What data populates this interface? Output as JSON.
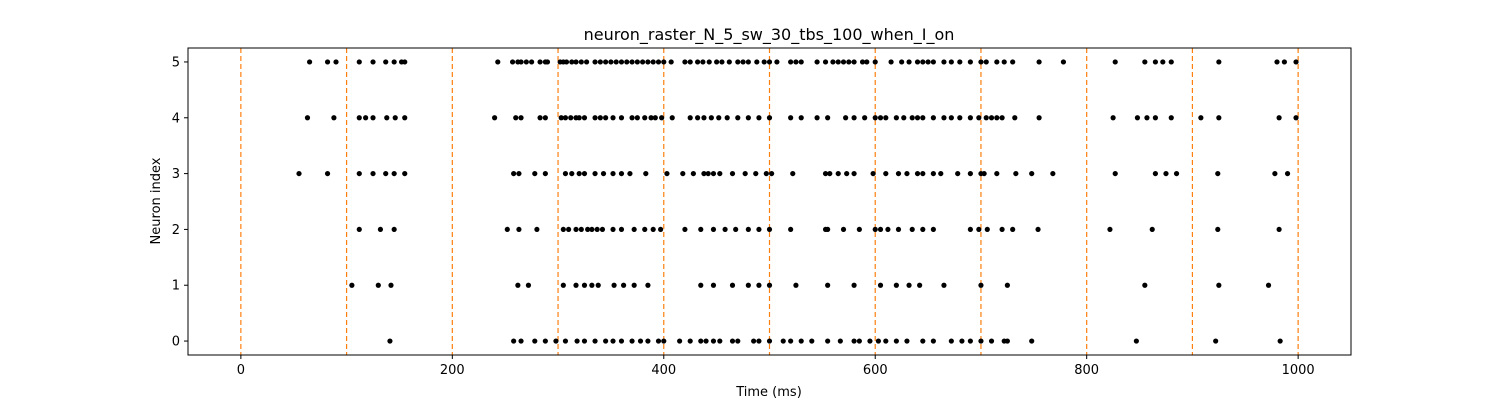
{
  "chart_data": {
    "type": "scatter",
    "title": "neuron_raster_N_5_sw_30_tbs_100_when_I_on",
    "xlabel": "Time (ms)",
    "ylabel": "Neuron index",
    "xlim": [
      -50,
      1050
    ],
    "ylim": [
      -0.25,
      5.25
    ],
    "xticks": [
      0,
      200,
      400,
      600,
      800,
      1000
    ],
    "yticks": [
      0,
      1,
      2,
      3,
      4,
      5
    ],
    "grid": false,
    "vlines": [
      0,
      100,
      200,
      300,
      400,
      500,
      600,
      700,
      800,
      900,
      1000
    ],
    "colors": {
      "marker": "#000000",
      "vline": "#ff7f0e",
      "axes": "#000000"
    },
    "series": [
      {
        "neuron": 5,
        "spikes": [
          65,
          82,
          90,
          112,
          125,
          137,
          145,
          152,
          155,
          243,
          257,
          262,
          265,
          270,
          275,
          283,
          288,
          290,
          302,
          305,
          308,
          313,
          317,
          322,
          327,
          335,
          340,
          345,
          350,
          355,
          360,
          365,
          370,
          375,
          380,
          385,
          390,
          395,
          400,
          407,
          420,
          425,
          432,
          437,
          443,
          450,
          455,
          462,
          470,
          475,
          480,
          488,
          495,
          500,
          507,
          520,
          525,
          530,
          545,
          553,
          560,
          565,
          570,
          575,
          580,
          588,
          592,
          600,
          615,
          625,
          632,
          640,
          645,
          650,
          655,
          665,
          672,
          680,
          690,
          700,
          705,
          715,
          722,
          730,
          755,
          778,
          827,
          855,
          865,
          872,
          880,
          925,
          980,
          987,
          998
        ]
      },
      {
        "neuron": 4,
        "spikes": [
          63,
          88,
          112,
          118,
          125,
          138,
          146,
          155,
          240,
          260,
          265,
          283,
          288,
          303,
          307,
          312,
          317,
          320,
          325,
          335,
          340,
          345,
          352,
          360,
          370,
          375,
          382,
          388,
          392,
          398,
          408,
          425,
          432,
          438,
          445,
          452,
          460,
          470,
          480,
          490,
          500,
          520,
          530,
          545,
          555,
          572,
          580,
          590,
          600,
          605,
          610,
          620,
          627,
          635,
          640,
          645,
          655,
          665,
          672,
          680,
          690,
          698,
          705,
          710,
          715,
          720,
          732,
          755,
          825,
          848,
          857,
          865,
          880,
          908,
          925,
          982,
          998
        ]
      },
      {
        "neuron": 3,
        "spikes": [
          55,
          82,
          112,
          125,
          137,
          145,
          155,
          258,
          263,
          278,
          288,
          307,
          313,
          320,
          325,
          335,
          343,
          352,
          360,
          368,
          383,
          403,
          418,
          428,
          438,
          442,
          447,
          453,
          465,
          477,
          487,
          497,
          502,
          522,
          553,
          557,
          565,
          573,
          580,
          598,
          610,
          622,
          630,
          640,
          645,
          655,
          662,
          678,
          690,
          700,
          703,
          715,
          733,
          748,
          768,
          827,
          865,
          875,
          885,
          924,
          978,
          990
        ]
      },
      {
        "neuron": 2,
        "spikes": [
          112,
          132,
          145,
          252,
          263,
          280,
          305,
          310,
          317,
          322,
          328,
          332,
          337,
          342,
          352,
          360,
          372,
          382,
          390,
          397,
          420,
          435,
          447,
          458,
          468,
          480,
          490,
          500,
          520,
          553,
          555,
          570,
          585,
          600,
          605,
          612,
          622,
          635,
          645,
          655,
          690,
          698,
          706,
          720,
          730,
          754,
          822,
          862,
          924,
          982
        ]
      },
      {
        "neuron": 1,
        "spikes": [
          105,
          130,
          142,
          262,
          272,
          305,
          317,
          325,
          332,
          338,
          353,
          362,
          372,
          385,
          435,
          447,
          465,
          480,
          490,
          500,
          525,
          555,
          580,
          605,
          620,
          632,
          642,
          665,
          700,
          725,
          855,
          925,
          972
        ]
      },
      {
        "neuron": 0,
        "spikes": [
          141,
          258,
          265,
          278,
          288,
          298,
          307,
          318,
          325,
          335,
          345,
          352,
          360,
          370,
          378,
          385,
          395,
          400,
          415,
          425,
          435,
          440,
          447,
          453,
          465,
          470,
          485,
          490,
          500,
          513,
          520,
          530,
          540,
          555,
          567,
          580,
          585,
          595,
          603,
          610,
          620,
          630,
          645,
          655,
          672,
          682,
          690,
          700,
          710,
          722,
          725,
          748,
          847,
          922,
          983
        ]
      }
    ]
  }
}
